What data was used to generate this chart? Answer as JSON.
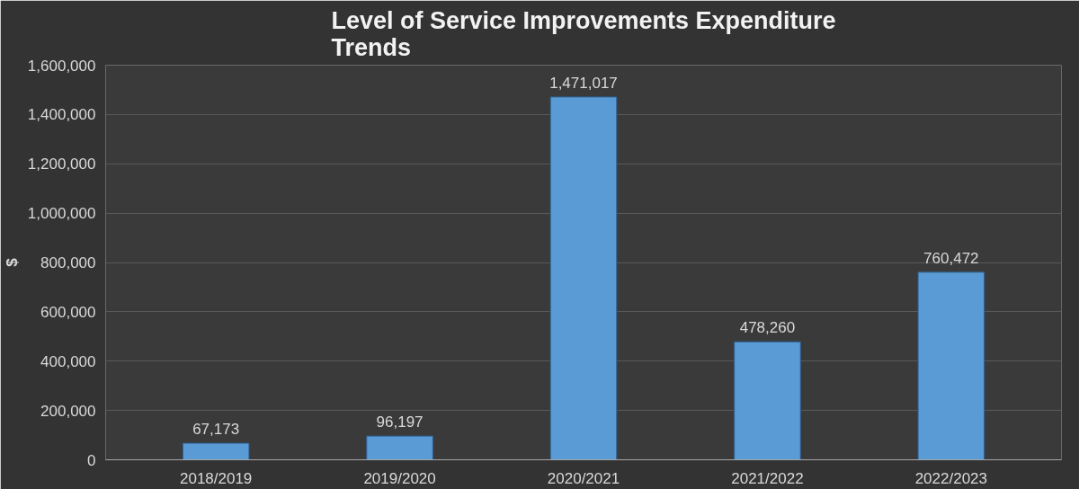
{
  "chart_data": {
    "type": "bar",
    "title": "Level of Service Improvements Expenditure Trends",
    "ylabel": "$",
    "categories": [
      "2018/2019",
      "2019/2020",
      "2020/2021",
      "2021/2022",
      "2022/2023"
    ],
    "values": [
      67173,
      96197,
      1471017,
      478260,
      760472
    ],
    "color": "#5b9bd5",
    "value_labels": [
      "67,173",
      "96,197",
      "1,471,017",
      "478,260",
      "760,472"
    ],
    "ylim": [
      0,
      1600000
    ],
    "yticks": [
      {
        "value": 0,
        "label": "0"
      },
      {
        "value": 200000,
        "label": "200,000"
      },
      {
        "value": 400000,
        "label": "400,000"
      },
      {
        "value": 600000,
        "label": "600,000"
      },
      {
        "value": 800000,
        "label": "800,000"
      },
      {
        "value": 1000000,
        "label": "1,000,000"
      },
      {
        "value": 1200000,
        "label": "1,200,000"
      },
      {
        "value": 1400000,
        "label": "1,400,000"
      },
      {
        "value": 1600000,
        "label": "1,600,000"
      }
    ],
    "grid": "y"
  }
}
